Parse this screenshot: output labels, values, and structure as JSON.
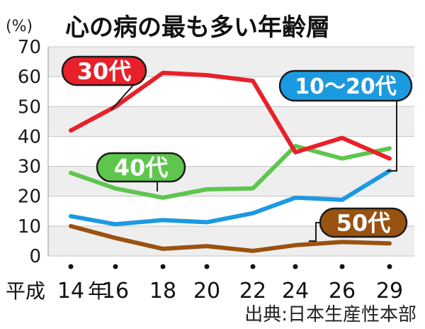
{
  "chart_data": {
    "type": "line",
    "title": "心の病の最も多い年齢層",
    "ylabel": "(%)",
    "source": "出典:日本生産性本部",
    "x_label_prefix": "平成",
    "x_label_suffix": "年",
    "categories": [
      "14",
      "16",
      "18",
      "20",
      "22",
      "24",
      "26",
      "29"
    ],
    "ylim": [
      0,
      70
    ],
    "yticks": [
      0,
      10,
      20,
      30,
      40,
      50,
      60,
      70
    ],
    "grid": true,
    "series": [
      {
        "name": "30代",
        "color": "#e8202a",
        "label_bg": "#e8202a",
        "values": [
          42,
          50,
          61.3,
          60.5,
          58.6,
          34.7,
          39.5,
          32.6
        ]
      },
      {
        "name": "10〜20代",
        "color": "#1b9ae0",
        "label_bg": "#1b9ae0",
        "values": [
          13.3,
          10.6,
          12.0,
          11.3,
          14.3,
          19.5,
          18.8,
          28.5
        ]
      },
      {
        "name": "40代",
        "color": "#5ec64c",
        "label_bg": "#5ec64c",
        "values": [
          27.8,
          22.6,
          19.5,
          22.3,
          22.6,
          36.8,
          32.6,
          36.0
        ]
      },
      {
        "name": "50代",
        "color": "#9a5210",
        "label_bg": "#9a5210",
        "values": [
          10.0,
          6.0,
          2.4,
          3.3,
          1.7,
          3.6,
          4.7,
          4.2
        ]
      }
    ]
  }
}
